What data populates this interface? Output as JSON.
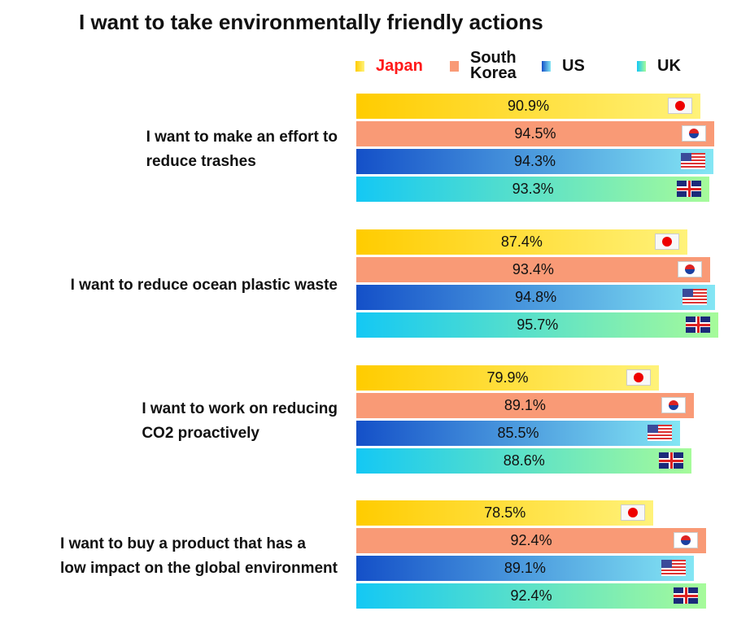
{
  "chart_data": {
    "type": "bar",
    "orientation": "horizontal",
    "title": "I want to take environmentally friendly actions",
    "unit": "%",
    "legend": [
      {
        "name": "Japan",
        "gradient": [
          "#ffcc00",
          "#fff27a"
        ],
        "label_color": "#ff1a1a",
        "icon": "japan-flag-icon"
      },
      {
        "name": "South Korea",
        "gradient": [
          "#f99a76",
          "#f99a76"
        ],
        "label_color": "#111111",
        "icon": "south-korea-flag-icon"
      },
      {
        "name": "US",
        "gradient": [
          "#1450c8",
          "#84e6f4"
        ],
        "label_color": "#111111",
        "icon": "us-flag-icon"
      },
      {
        "name": "UK",
        "gradient": [
          "#14c8f4",
          "#a6fb9a"
        ],
        "label_color": "#111111",
        "icon": "uk-flag-icon"
      }
    ],
    "legend_lines": {
      "south_korea": [
        "South",
        "Korea"
      ]
    },
    "categories": [
      {
        "label": [
          "I want to make an effort to",
          "reduce trashes"
        ],
        "values": [
          90.9,
          94.5,
          94.3,
          93.3
        ],
        "labels": [
          "90.9%",
          "94.5%",
          "94.3%",
          "93.3%"
        ]
      },
      {
        "label": [
          "I want to reduce ocean plastic waste"
        ],
        "values": [
          87.4,
          93.4,
          94.8,
          95.7
        ],
        "labels": [
          "87.4%",
          "93.4%",
          "94.8%",
          "95.7%"
        ]
      },
      {
        "label": [
          "I want to work on reducing",
          "CO2 proactively"
        ],
        "values": [
          79.9,
          89.1,
          85.5,
          88.6
        ],
        "labels": [
          "79.9%",
          "89.1%",
          "85.5%",
          "88.6%"
        ]
      },
      {
        "label": [
          "I want to buy a product that has a",
          "low impact on the global environment"
        ],
        "values": [
          78.5,
          92.4,
          89.1,
          92.4
        ],
        "labels": [
          "78.5%",
          "92.4%",
          "89.1%",
          "92.4%"
        ]
      }
    ],
    "xlim": [
      0,
      100
    ]
  }
}
